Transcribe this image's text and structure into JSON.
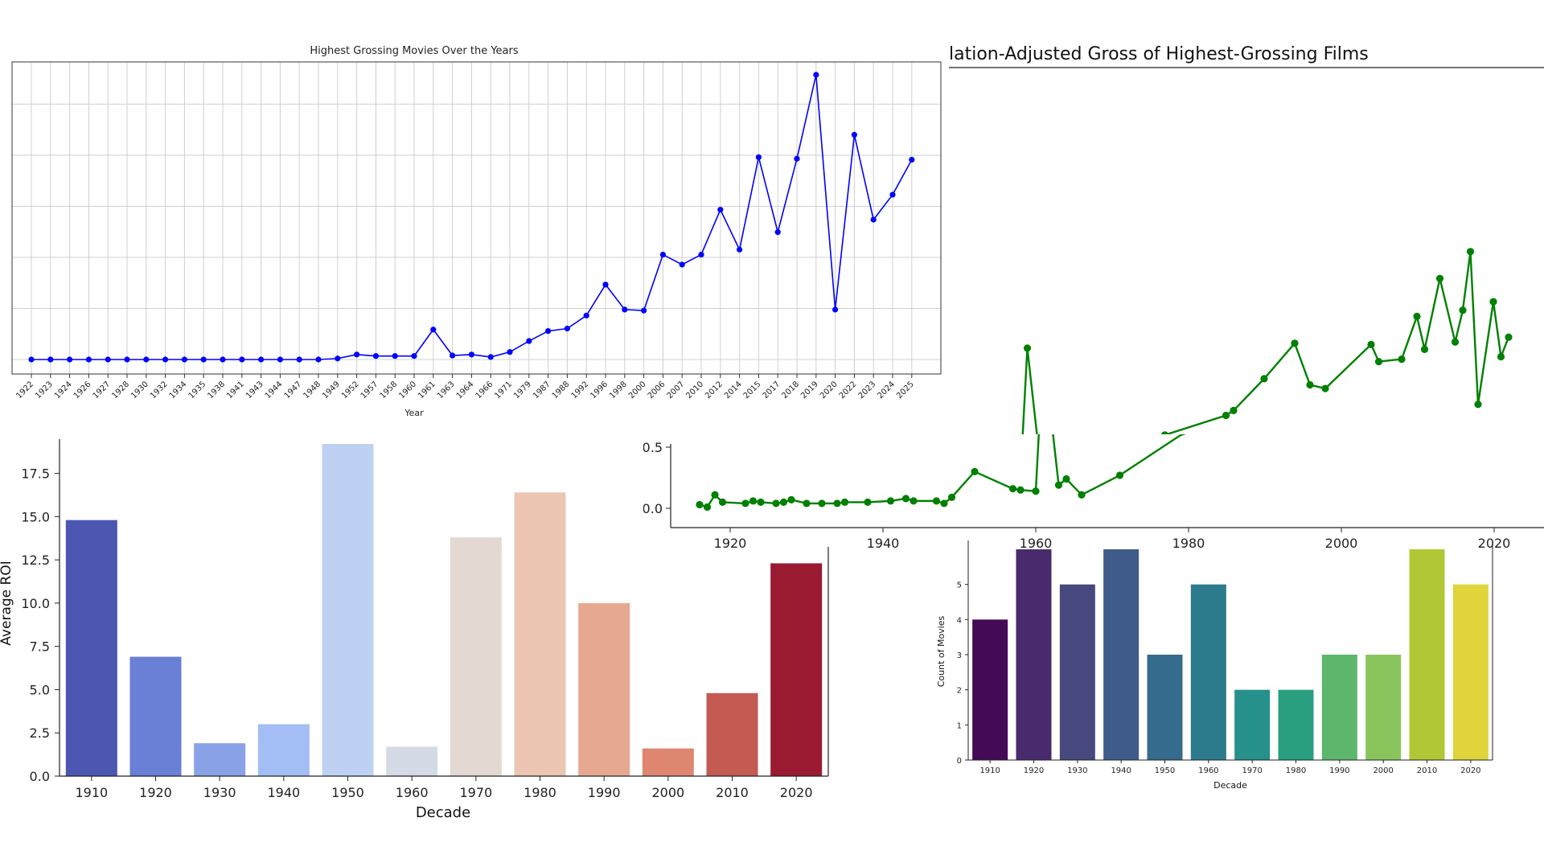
{
  "charts": {
    "grossing": {
      "title": "Highest Grossing Movies Over the Years",
      "xlabel": "Year"
    },
    "inflation": {
      "title": "lation-Adjusted Gross of Highest-Grossing Films"
    },
    "roi": {
      "ylabel": "Average ROI",
      "xlabel": "Decade"
    },
    "count": {
      "ylabel": "Count of Movies",
      "xlabel": "Decade"
    }
  },
  "chart_data": [
    {
      "id": "grossing",
      "type": "line",
      "title": "Highest Grossing Movies Over the Years",
      "xlabel": "Year",
      "ylabel": "",
      "color": "#0000ff",
      "grid": true,
      "categories": [
        "1922",
        "1923",
        "1924",
        "1926",
        "1927",
        "1928",
        "1930",
        "1932",
        "1934",
        "1935",
        "1938",
        "1941",
        "1943",
        "1944",
        "1947",
        "1948",
        "1949",
        "1952",
        "1957",
        "1958",
        "1960",
        "1961",
        "1963",
        "1964",
        "1966",
        "1971",
        "1979",
        "1987",
        "1988",
        "1992",
        "1996",
        "1998",
        "2000",
        "2006",
        "2007",
        "2010",
        "2012",
        "2014",
        "2015",
        "2017",
        "2018",
        "2019",
        "2020",
        "2022",
        "2023",
        "2024",
        "2025"
      ],
      "values": [
        0.1,
        0.1,
        0.1,
        0.1,
        0.1,
        0.1,
        0.1,
        0.1,
        0.1,
        0.1,
        0.1,
        0.1,
        0.1,
        0.1,
        0.1,
        0.1,
        0.12,
        0.2,
        0.17,
        0.17,
        0.17,
        0.7,
        0.18,
        0.2,
        0.15,
        0.25,
        0.47,
        0.67,
        0.72,
        0.98,
        1.6,
        1.1,
        1.08,
        2.2,
        2.0,
        2.2,
        3.1,
        2.3,
        4.15,
        2.65,
        4.12,
        5.8,
        1.1,
        4.6,
        2.9,
        3.4,
        4.1
      ],
      "ylim": [
        0,
        6
      ]
    },
    {
      "id": "inflation",
      "type": "line",
      "title": "lation-Adjusted Gross of Highest-Grossing Films",
      "xlabel": "",
      "ylabel": "",
      "color": "#008000",
      "grid": false,
      "x": [
        1916,
        1917,
        1918,
        1919,
        1922,
        1923,
        1924,
        1926,
        1927,
        1928,
        1930,
        1932,
        1934,
        1935,
        1938,
        1941,
        1943,
        1944,
        1947,
        1948,
        1949,
        1952,
        1957,
        1958,
        1960,
        1961,
        1963,
        1964,
        1966,
        1971,
        1979,
        1987,
        1988,
        1992,
        1996,
        1998,
        2000,
        2006,
        2007,
        2010,
        2012,
        2013,
        2015,
        2017,
        2018,
        2019,
        2020,
        2022,
        2023,
        2024
      ],
      "y": [
        0.03,
        0.01,
        0.11,
        0.05,
        0.04,
        0.06,
        0.05,
        0.04,
        0.05,
        0.07,
        0.04,
        0.04,
        0.04,
        0.05,
        0.05,
        0.06,
        0.08,
        0.06,
        0.06,
        0.04,
        0.09,
        0.3,
        0.16,
        0.15,
        0.14,
        1.31,
        0.19,
        0.24,
        0.11,
        0.27,
        0.6,
        0.76,
        0.8,
        1.06,
        1.35,
        1.01,
        0.98,
        1.34,
        1.2,
        1.22,
        1.57,
        1.3,
        1.88,
        1.36,
        1.62,
        2.1,
        0.85,
        1.69,
        1.24,
        1.4
      ],
      "xlim": [
        1913,
        2024
      ],
      "xticks": [
        1920,
        1940,
        1960,
        1980,
        2000,
        2020
      ],
      "yticks": [
        0.0,
        0.5
      ],
      "ylim": [
        -0.15,
        2.2
      ]
    },
    {
      "id": "roi",
      "type": "bar",
      "title": "",
      "xlabel": "Decade",
      "ylabel": "Average ROI",
      "categories": [
        "1910",
        "1920",
        "1930",
        "1940",
        "1950",
        "1960",
        "1970",
        "1980",
        "1990",
        "2000",
        "2010",
        "2020"
      ],
      "values": [
        14.8,
        6.9,
        1.9,
        3.0,
        19.2,
        1.7,
        13.8,
        16.4,
        10.0,
        1.6,
        4.8,
        12.3
      ],
      "colors": [
        "#4b57b1",
        "#6a7fd6",
        "#89a3e6",
        "#a3bdf5",
        "#bfd1f3",
        "#d5dbe6",
        "#e3d9d2",
        "#ecc5b3",
        "#e7a891",
        "#de8670",
        "#c35b53",
        "#9a1a32"
      ],
      "ylim": [
        0,
        19.2
      ],
      "yticks": [
        "0.0",
        "2.5",
        "5.0",
        "7.5",
        "10.0",
        "12.5",
        "15.0",
        "17.5"
      ]
    },
    {
      "id": "count",
      "type": "bar",
      "title": "",
      "xlabel": "Decade",
      "ylabel": "Count of Movies",
      "categories": [
        "1910",
        "1920",
        "1930",
        "1940",
        "1950",
        "1960",
        "1970",
        "1980",
        "1990",
        "2000",
        "2010",
        "2020"
      ],
      "values": [
        4,
        6,
        5,
        6,
        3,
        5,
        2,
        2,
        3,
        3,
        6,
        5
      ],
      "colors": [
        "#440a56",
        "#482a6d",
        "#47487e",
        "#3f5b89",
        "#356b8d",
        "#2b7b8d",
        "#26908b",
        "#2a9f7f",
        "#5cb66b",
        "#89c55c",
        "#b1c735",
        "#e0d43a"
      ],
      "ylim": [
        0,
        6
      ],
      "yticks": [
        "0",
        "1",
        "2",
        "3",
        "4",
        "5"
      ]
    }
  ]
}
